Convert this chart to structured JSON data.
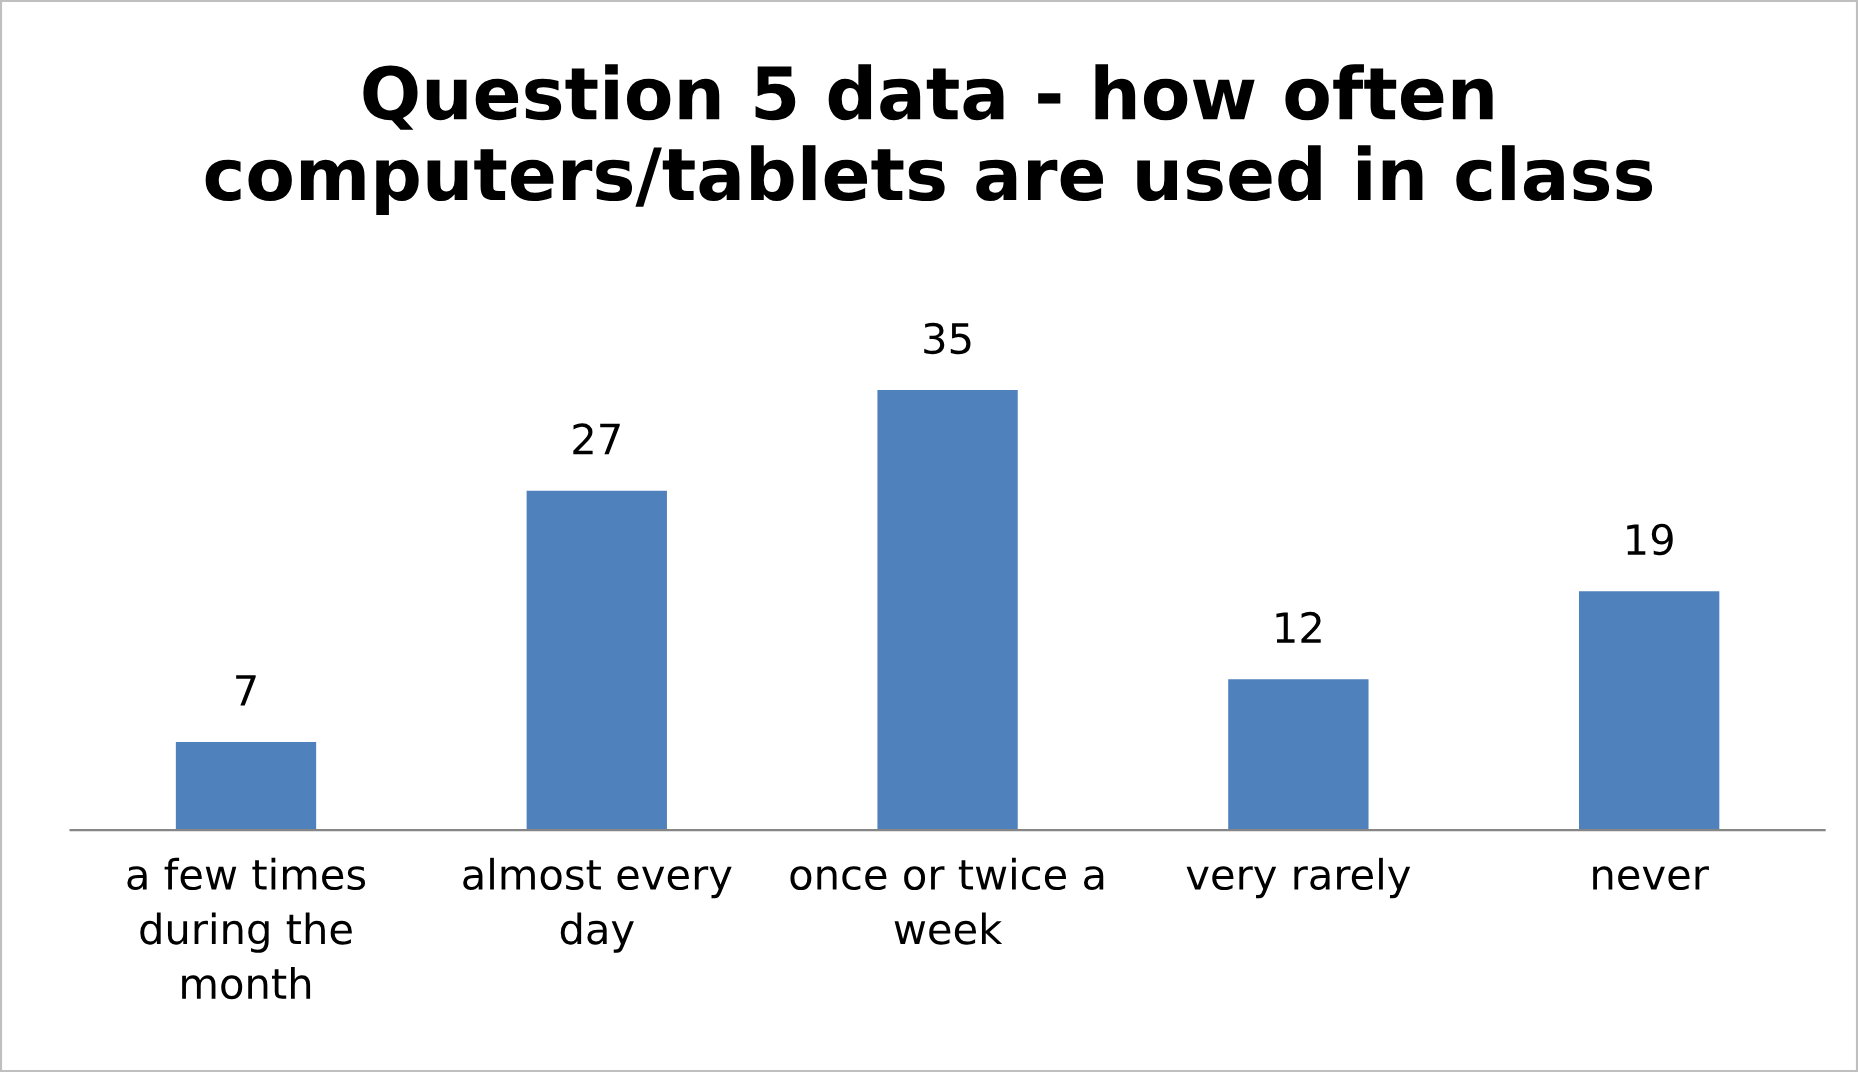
{
  "chart_data": {
    "type": "bar",
    "title": "Question 5 data - how often\ncomputers/tablets are used in class",
    "categories": [
      "a few times\nduring the\nmonth",
      "almost every\nday",
      "once or twice a\nweek",
      "very rarely",
      "never"
    ],
    "values": [
      7,
      27,
      35,
      12,
      19
    ],
    "color": "#4f81bd",
    "data_labels": true,
    "grid": false,
    "legend": false
  }
}
